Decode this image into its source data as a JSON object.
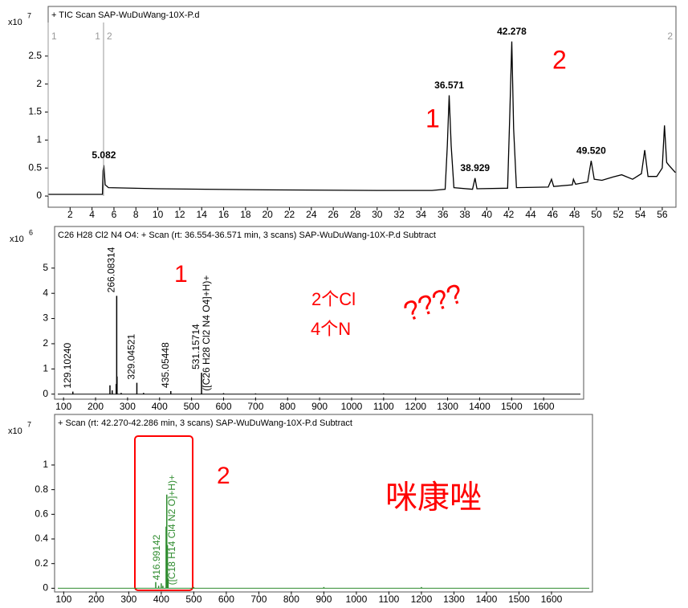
{
  "chart_data": [
    {
      "type": "line",
      "title": "+ TIC Scan SAP-WuDuWang-10X-P.d",
      "scale_label": "x10",
      "scale_exponent": "7",
      "x": [
        0,
        4.95,
        5.0,
        5.082,
        5.2,
        5.5,
        10,
        20,
        30,
        35,
        36.2,
        36.4,
        36.571,
        36.75,
        37,
        38.7,
        38.929,
        39.1,
        41.9,
        42.1,
        42.278,
        42.45,
        42.7,
        45.6,
        45.9,
        46.1,
        47.8,
        47.9,
        48.1,
        49.2,
        49.52,
        49.8,
        50.5,
        51.5,
        52.3,
        53.3,
        54.1,
        54.4,
        54.7,
        55.5,
        56,
        56.2,
        56.4,
        56.6,
        57.2
      ],
      "values": [
        0.03,
        0.03,
        0.45,
        0.55,
        0.2,
        0.15,
        0.13,
        0.11,
        0.1,
        0.1,
        0.12,
        0.9,
        1.8,
        0.9,
        0.15,
        0.12,
        0.32,
        0.13,
        0.14,
        1.5,
        2.76,
        1.2,
        0.15,
        0.16,
        0.3,
        0.17,
        0.2,
        0.3,
        0.21,
        0.25,
        0.63,
        0.3,
        0.28,
        0.34,
        0.38,
        0.3,
        0.4,
        0.82,
        0.35,
        0.35,
        0.5,
        1.26,
        0.6,
        0.55,
        0.42
      ],
      "color": "#000000",
      "xlim": [
        0,
        57.25
      ],
      "ylim": [
        -0.2,
        3.1
      ],
      "xticks": [
        2,
        4,
        6,
        8,
        10,
        12,
        14,
        16,
        18,
        20,
        22,
        24,
        26,
        28,
        30,
        32,
        34,
        36,
        38,
        40,
        42,
        44,
        46,
        48,
        50,
        52,
        54,
        56
      ],
      "yticks": [
        0,
        0.5,
        1,
        1.5,
        2,
        2.5
      ],
      "peak_labels": [
        {
          "x": 5.082,
          "label": "5.082"
        },
        {
          "x": 36.571,
          "label": "36.571"
        },
        {
          "x": 38.929,
          "label": "38.929"
        },
        {
          "x": 42.278,
          "label": "42.278"
        },
        {
          "x": 49.52,
          "label": "49.520"
        }
      ],
      "segments": [
        {
          "start": 0,
          "end": 5.05,
          "label": "1"
        },
        {
          "start": 5.05,
          "end": 57.25,
          "label": "2"
        }
      ],
      "segment_color": "#999999",
      "annotations": [
        "1",
        "2"
      ],
      "annotation_color": "#ff0000"
    },
    {
      "type": "spectrum",
      "title": "C26 H28 Cl2 N4 O4: + Scan (rt: 36.554-36.571 min, 3 scans) SAP-WuDuWang-10X-P.d  Subtract",
      "scale_label": "x10",
      "scale_exponent": "6",
      "x": [
        129.1024,
        245,
        252,
        264.5,
        266.08314,
        267.1,
        280,
        329.04521,
        350,
        435.05448,
        531.15714,
        600,
        700,
        1100
      ],
      "values": [
        0.1,
        0.35,
        0.15,
        0.4,
        3.9,
        0.7,
        0.05,
        0.45,
        0.05,
        0.12,
        0.85,
        0.04,
        0.03,
        0.03
      ],
      "color": "#000000",
      "xlim": [
        72,
        1725
      ],
      "ylim": [
        -0.2,
        5.95
      ],
      "xticks": [
        100,
        200,
        300,
        400,
        500,
        600,
        700,
        800,
        900,
        1000,
        1100,
        1200,
        1300,
        1400,
        1500,
        1600
      ],
      "yticks": [
        0,
        1,
        2,
        3,
        4,
        5
      ],
      "peak_labels": [
        {
          "x": 129.1024,
          "label": "129.10240",
          "placement": "above"
        },
        {
          "x": 266.08314,
          "label": "266.08314",
          "placement": "above"
        },
        {
          "x": 329.04521,
          "label": "329.04521",
          "placement": "above"
        },
        {
          "x": 435.05448,
          "label": "435.05448",
          "placement": "above"
        },
        {
          "x": 531.15714,
          "label": "531.15714",
          "placement": "above"
        },
        {
          "x": 531.15714,
          "label": "([C26 H28 Cl2 N4 O4]+H)+",
          "placement": "beside"
        }
      ],
      "annotations": [
        "1",
        "2个Cl",
        "4个N",
        "????"
      ],
      "annotation_color": "#ff0000"
    },
    {
      "type": "spectrum",
      "title": "+ Scan (rt: 42.270-42.286 min, 3 scans) SAP-WuDuWang-10X-P.d  Subtract",
      "scale_label": "x10",
      "scale_exponent": "7",
      "x": [
        383,
        392,
        400,
        405,
        414.99,
        416.99142,
        418.99,
        420.99,
        500,
        900,
        1200
      ],
      "values": [
        0.05,
        0.02,
        0.04,
        0.02,
        0.5,
        0.76,
        0.35,
        0.08,
        0.01,
        0.01,
        0.01
      ],
      "color": "#2e8b2e",
      "xlim": [
        72,
        1726
      ],
      "ylim": [
        -0.03,
        1.28
      ],
      "xticks": [
        100,
        200,
        300,
        400,
        500,
        600,
        700,
        800,
        900,
        1000,
        1100,
        1200,
        1300,
        1400,
        1500,
        1600
      ],
      "yticks": [
        0,
        0.2,
        0.4,
        0.6,
        0.8,
        1
      ],
      "peak_labels": [
        {
          "x": 416.99142,
          "label": "416.99142",
          "placement": "beside-left"
        },
        {
          "x": 416.99142,
          "label": "([C18 H14 Cl4 N2 O]+H)+",
          "placement": "beside"
        }
      ],
      "annotations": [
        "2",
        "咪康唑"
      ],
      "annotation_color": "#ff0000"
    }
  ]
}
